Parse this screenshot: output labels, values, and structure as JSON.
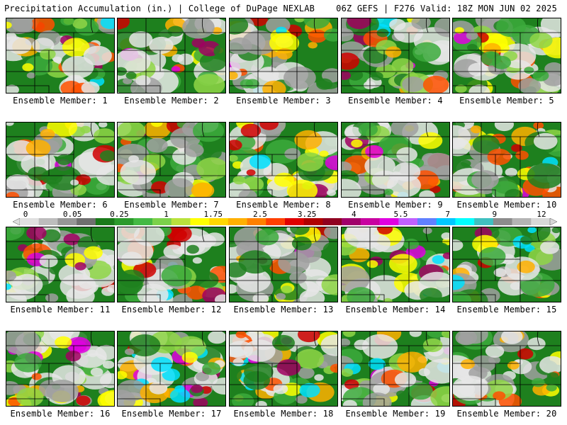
{
  "header": {
    "left": "Precipitation Accumulation (in.) | College of DuPage NEXLAB",
    "right": "06Z GEFS | F276 Valid: 18Z MON JUN 02 2025"
  },
  "members": [
    "Ensemble Member: 1",
    "Ensemble Member: 2",
    "Ensemble Member: 3",
    "Ensemble Member: 4",
    "Ensemble Member: 5",
    "Ensemble Member: 6",
    "Ensemble Member: 7",
    "Ensemble Member: 8",
    "Ensemble Member: 9",
    "Ensemble Member: 10",
    "Ensemble Member: 11",
    "Ensemble Member: 12",
    "Ensemble Member: 13",
    "Ensemble Member: 14",
    "Ensemble Member: 15",
    "Ensemble Member: 16",
    "Ensemble Member: 17",
    "Ensemble Member: 18",
    "Ensemble Member: 19",
    "Ensemble Member: 20"
  ],
  "member_intensity": [
    0.55,
    0.5,
    0.7,
    0.55,
    0.4,
    0.55,
    0.4,
    0.65,
    0.5,
    0.45,
    0.45,
    0.55,
    0.5,
    0.75,
    0.8,
    0.5,
    0.7,
    0.8,
    0.7,
    0.4
  ],
  "colorbar": {
    "tick_labels": [
      "0",
      "0.05",
      "0.25",
      "1",
      "1.75",
      "2.5",
      "3.25",
      "4",
      "5.5",
      "7",
      "9",
      "12"
    ],
    "colors": [
      "#e0e0e0",
      "#bdbdbd",
      "#969696",
      "#6f6f6f",
      "#1a7a1a",
      "#2b9a2b",
      "#44b944",
      "#7bd14a",
      "#b9e23c",
      "#ffff00",
      "#ffd700",
      "#ffb000",
      "#ff8000",
      "#ff4000",
      "#e00000",
      "#b00000",
      "#900020",
      "#a0006a",
      "#c800a0",
      "#e000e0",
      "#c060ff",
      "#6080ff",
      "#00c8ff",
      "#00ffff",
      "#40c0c0",
      "#8c8c8c",
      "#b4b4b4",
      "#d8d8d8"
    ]
  }
}
